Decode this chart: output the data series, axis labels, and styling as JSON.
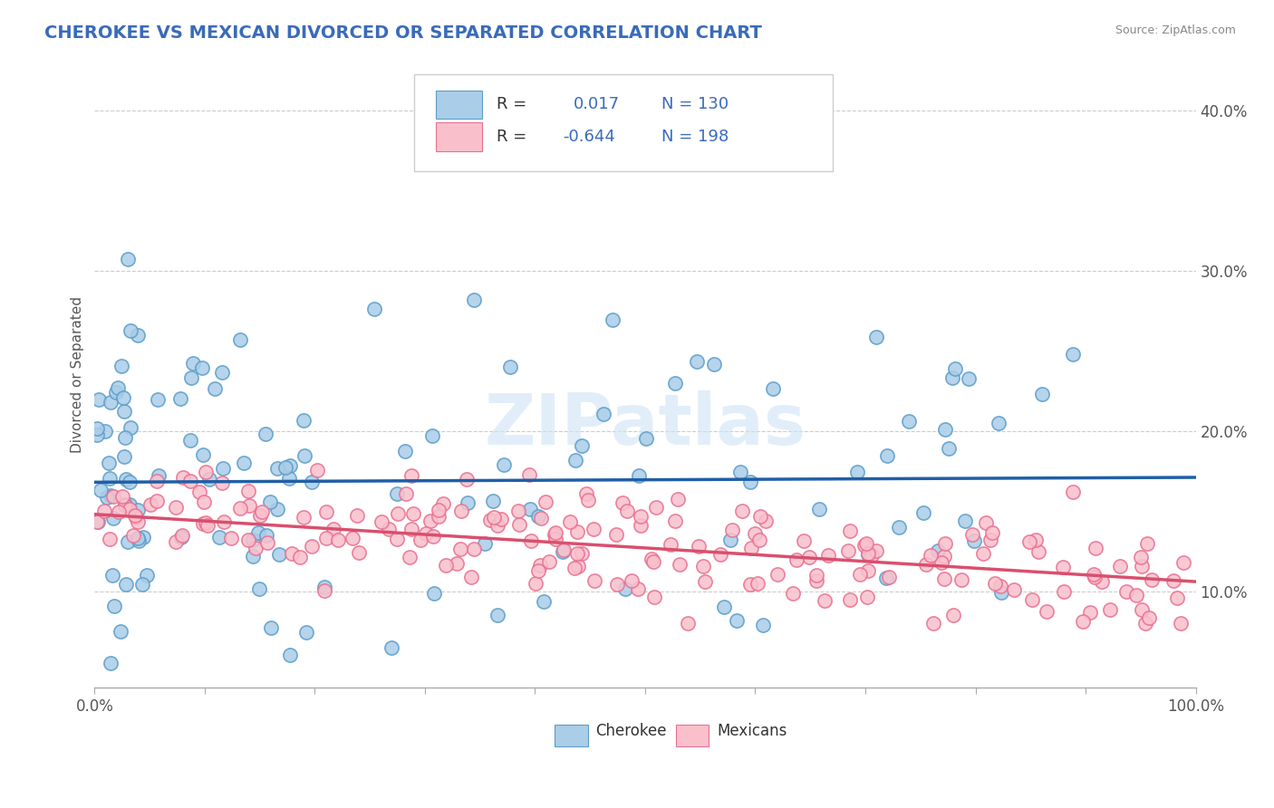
{
  "title": "CHEROKEE VS MEXICAN DIVORCED OR SEPARATED CORRELATION CHART",
  "source_text": "Source: ZipAtlas.com",
  "ylabel": "Divorced or Separated",
  "xlim": [
    0,
    100
  ],
  "ylim": [
    4,
    43
  ],
  "xticks": [
    0,
    10,
    20,
    30,
    40,
    50,
    60,
    70,
    80,
    90,
    100
  ],
  "xtick_labels": [
    "0.0%",
    "",
    "",
    "",
    "",
    "",
    "",
    "",
    "",
    "",
    "100.0%"
  ],
  "yticks": [
    10,
    20,
    30,
    40
  ],
  "ytick_labels": [
    "10.0%",
    "20.0%",
    "30.0%",
    "40.0%"
  ],
  "watermark": "ZIPatlas",
  "cherokee_color": "#aacde8",
  "cherokee_edge_color": "#5b9dc9",
  "mexican_color": "#f9c0cc",
  "mexican_edge_color": "#e87090",
  "cherokee_line_color": "#1f5fa6",
  "mexican_line_color": "#d94f6e",
  "grid_color": "#cccccc",
  "background_color": "#ffffff",
  "legend_text_color": "#3a6bba",
  "legend_label_color": "#333333",
  "cherokee_slope": 0.003,
  "cherokee_intercept": 16.8,
  "mexican_slope": -0.042,
  "mexican_intercept": 14.8,
  "title_color": "#3a6bba",
  "source_color": "#888888"
}
